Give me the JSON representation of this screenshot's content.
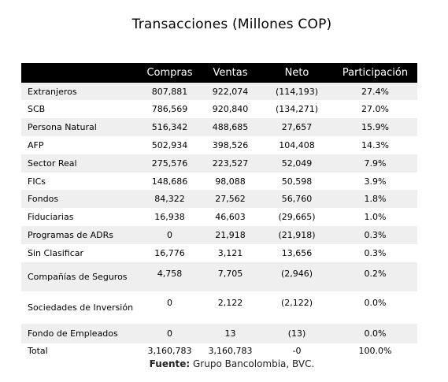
{
  "title": "Transacciones (Millones COP)",
  "source_label": "Fuente:",
  "source_text": "Grupo Bancolombia, BVC.",
  "chart_data": {
    "type": "table",
    "title": "Transacciones (Millones COP)",
    "columns": [
      "",
      "Compras",
      "Ventas",
      "Neto",
      "Participación"
    ],
    "rows": [
      {
        "name": "Extranjeros",
        "compras": "807,881",
        "ventas": "922,074",
        "neto": "(114,193)",
        "participacion": "27.4%"
      },
      {
        "name": "SCB",
        "compras": "786,569",
        "ventas": "920,840",
        "neto": "(134,271)",
        "participacion": "27.0%"
      },
      {
        "name": "Persona Natural",
        "compras": "516,342",
        "ventas": "488,685",
        "neto": "27,657",
        "participacion": "15.9%"
      },
      {
        "name": "AFP",
        "compras": "502,934",
        "ventas": "398,526",
        "neto": "104,408",
        "participacion": "14.3%"
      },
      {
        "name": "Sector Real",
        "compras": "275,576",
        "ventas": "223,527",
        "neto": "52,049",
        "participacion": "7.9%"
      },
      {
        "name": "FICs",
        "compras": "148,686",
        "ventas": "98,088",
        "neto": "50,598",
        "participacion": "3.9%"
      },
      {
        "name": "Fondos",
        "compras": "84,322",
        "ventas": "27,562",
        "neto": "56,760",
        "participacion": "1.8%"
      },
      {
        "name": "Fiduciarias",
        "compras": "16,938",
        "ventas": "46,603",
        "neto": "(29,665)",
        "participacion": "1.0%"
      },
      {
        "name": "Programas de ADRs",
        "compras": "0",
        "ventas": "21,918",
        "neto": "(21,918)",
        "participacion": "0.3%"
      },
      {
        "name": "Sin Clasificar",
        "compras": "16,776",
        "ventas": "3,121",
        "neto": "13,656",
        "participacion": "0.3%"
      },
      {
        "name": "Compañías de Seguros",
        "compras": "4,758",
        "ventas": "7,705",
        "neto": "(2,946)",
        "participacion": "0.2%"
      },
      {
        "name": "Sociedades de Inversión",
        "compras": "0",
        "ventas": "2,122",
        "neto": "(2,122)",
        "participacion": "0.0%"
      },
      {
        "name": "Fondo de Empleados",
        "compras": "0",
        "ventas": "13",
        "neto": "(13)",
        "participacion": "0.0%"
      },
      {
        "name": "Total",
        "compras": "3,160,783",
        "ventas": "3,160,783",
        "neto": "-0",
        "participacion": "100.0%"
      }
    ]
  }
}
